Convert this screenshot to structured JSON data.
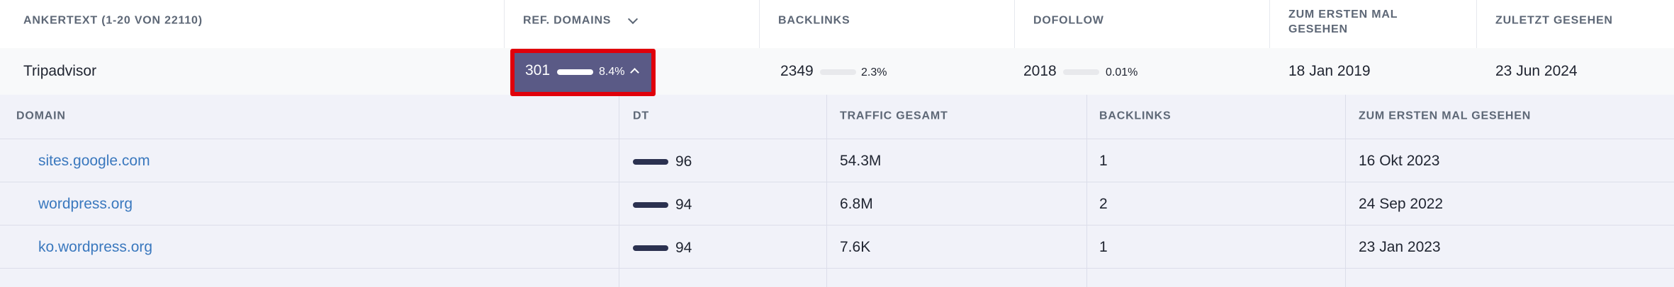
{
  "table": {
    "columns": [
      "ANKERTEXT (1-20 VON 22110)",
      "REF. DOMAINS",
      "BACKLINKS",
      "DOFOLLOW",
      "ZUM ERSTEN MAL GESEHEN",
      "ZULETZT GESEHEN"
    ],
    "row": {
      "anchor": "Tripadvisor",
      "ref_domains": "301",
      "ref_domains_pct": "8.4%",
      "backlinks": "2349",
      "backlinks_pct": "2.3%",
      "dofollow": "2018",
      "dofollow_pct": "0.01%",
      "first_seen": "18 Jan 2019",
      "last_seen": "23 Jun 2024"
    }
  },
  "subtable": {
    "columns": [
      "DOMAIN",
      "DT",
      "TRAFFIC GESAMT",
      "BACKLINKS",
      "ZUM ERSTEN MAL GESEHEN"
    ],
    "rows": [
      [
        "sites.google.com",
        "96",
        "54.3M",
        "1",
        "16 Okt 2023"
      ],
      [
        "wordpress.org",
        "94",
        "6.8M",
        "2",
        "24 Sep 2022"
      ],
      [
        "ko.wordpress.org",
        "94",
        "7.6K",
        "1",
        "23 Jan 2023"
      ]
    ]
  }
}
